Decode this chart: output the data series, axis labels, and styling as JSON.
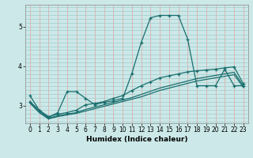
{
  "xlabel": "Humidex (Indice chaleur)",
  "bg_color": "#cce8e8",
  "grid_color_v": "#ff9999",
  "grid_color_h": "#aad4d4",
  "line_color": "#1a6e6e",
  "xlim": [
    -0.5,
    23.5
  ],
  "ylim": [
    2.55,
    5.55
  ],
  "yticks": [
    3,
    4,
    5
  ],
  "xticks": [
    0,
    1,
    2,
    3,
    4,
    5,
    6,
    7,
    8,
    9,
    10,
    11,
    12,
    13,
    14,
    15,
    16,
    17,
    18,
    19,
    20,
    21,
    22,
    23
  ],
  "line1_y": [
    3.25,
    2.88,
    2.7,
    2.82,
    3.35,
    3.35,
    3.18,
    3.02,
    3.08,
    3.12,
    3.18,
    3.82,
    4.6,
    5.22,
    5.28,
    5.28,
    5.28,
    4.68,
    3.5,
    3.5,
    3.5,
    3.92,
    3.5,
    3.5
  ],
  "line2_y": [
    3.1,
    2.88,
    2.72,
    2.78,
    2.82,
    2.88,
    3.02,
    3.05,
    3.1,
    3.18,
    3.25,
    3.38,
    3.5,
    3.6,
    3.7,
    3.75,
    3.8,
    3.85,
    3.88,
    3.9,
    3.92,
    3.95,
    3.98,
    3.55
  ],
  "line3_y": [
    3.08,
    2.84,
    2.68,
    2.74,
    2.78,
    2.82,
    2.9,
    2.96,
    3.02,
    3.08,
    3.14,
    3.2,
    3.28,
    3.36,
    3.44,
    3.5,
    3.56,
    3.62,
    3.68,
    3.72,
    3.76,
    3.8,
    3.84,
    3.5
  ],
  "line4_y": [
    3.06,
    2.82,
    2.66,
    2.72,
    2.76,
    2.8,
    2.86,
    2.92,
    2.98,
    3.04,
    3.1,
    3.16,
    3.22,
    3.3,
    3.38,
    3.44,
    3.5,
    3.56,
    3.62,
    3.66,
    3.7,
    3.74,
    3.78,
    3.46
  ]
}
